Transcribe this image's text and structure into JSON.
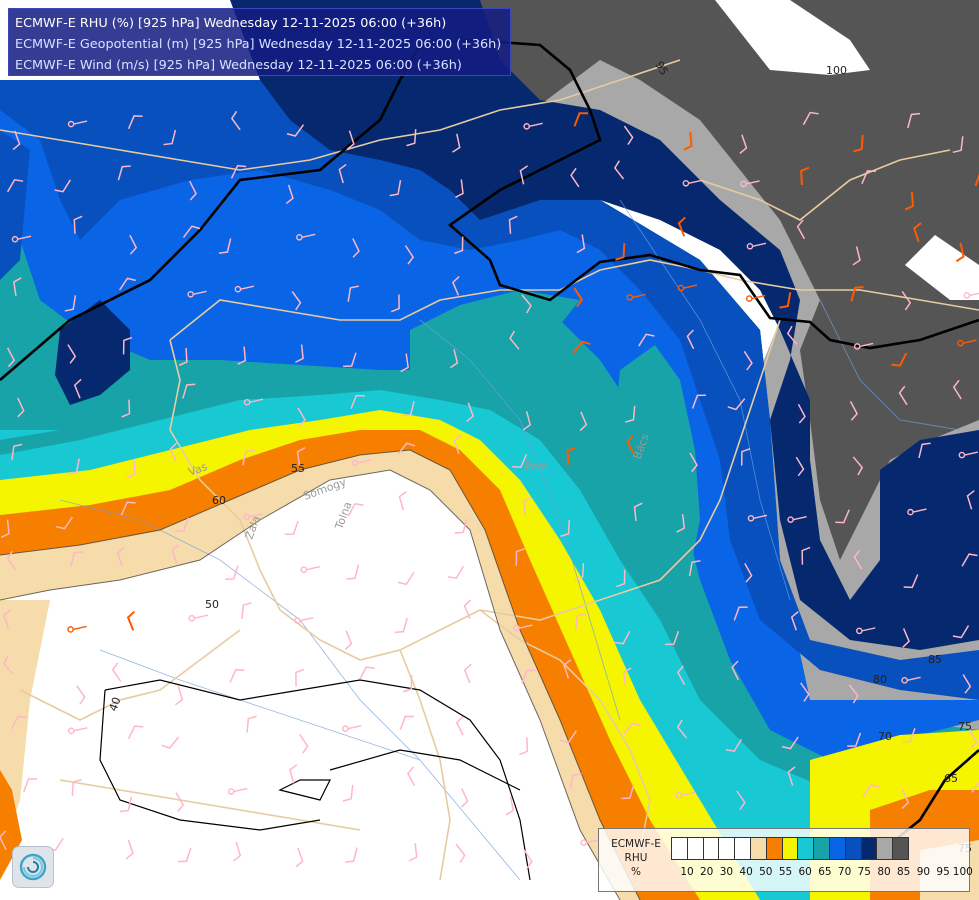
{
  "header": {
    "line1": "ECMWF-E RHU (%) [925 hPa] Wednesday 12-11-2025 06:00 (+36h)",
    "line2": "ECMWF-E Geopotential (m) [925 hPa] Wednesday 12-11-2025 06:00 (+36h)",
    "line3": "ECMWF-E Wind (m/s) [925 hPa] Wednesday 12-11-2025 06:00 (+36h)"
  },
  "legend": {
    "title_line1": "ECMWF-E",
    "title_line2": "RHU",
    "title_line3": "%",
    "ticks": [
      "10",
      "20",
      "30",
      "40",
      "50",
      "55",
      "60",
      "65",
      "70",
      "75",
      "80",
      "85",
      "90",
      "95",
      "100"
    ],
    "colors": [
      "#ffffff",
      "#ffffff",
      "#ffffff",
      "#ffffff",
      "#ffffff",
      "#f5dcaa",
      "#f77f00",
      "#f5f500",
      "#18c8d2",
      "#17a3a8",
      "#0a64e6",
      "#0850be",
      "#05286e",
      "#a8a8a8",
      "#555555"
    ]
  },
  "contour_labels": [
    {
      "text": "95"
    },
    {
      "text": "100"
    },
    {
      "text": "55"
    },
    {
      "text": "60"
    },
    {
      "text": "50"
    },
    {
      "text": "40"
    },
    {
      "text": "80"
    },
    {
      "text": "85"
    },
    {
      "text": "70"
    },
    {
      "text": "75"
    },
    {
      "text": "65"
    },
    {
      "text": "75"
    }
  ],
  "place_labels": [
    {
      "text": "Somogy"
    },
    {
      "text": "Tolna"
    },
    {
      "text": "Zala"
    },
    {
      "text": "Vas"
    },
    {
      "text": "Pest"
    },
    {
      "text": "Bács"
    }
  ],
  "colors": {
    "rhu_55": "#f5dcaa",
    "rhu_60": "#f77f00",
    "rhu_65": "#f5f500",
    "rhu_70": "#18c8d2",
    "rhu_75": "#17a3a8",
    "rhu_80": "#0a64e6",
    "rhu_85": "#0850be",
    "rhu_90": "#05286e",
    "rhu_95": "#a8a8a8",
    "rhu_100": "#555555",
    "border": "#e8cba0",
    "geopotential": "#000000",
    "wind_light": "#ffb6c8",
    "wind_strong": "#ff5a00"
  },
  "logo": {
    "name": "ecmwf-logo"
  }
}
